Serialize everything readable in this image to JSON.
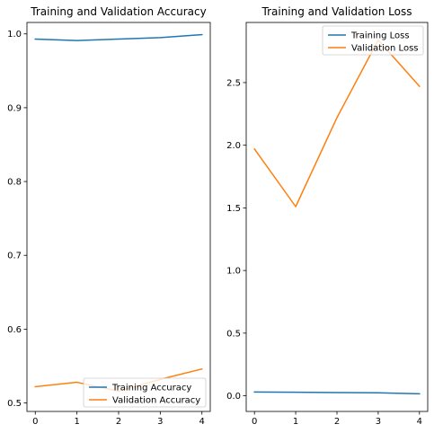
{
  "colors": {
    "training": "#1f77b4",
    "validation": "#ff7f0e",
    "axis": "#000000",
    "legend_border": "#cccccc"
  },
  "chart_data": [
    {
      "type": "line",
      "title": "Training and Validation Accuracy",
      "xlabel": "",
      "ylabel": "",
      "x": [
        0,
        1,
        2,
        3,
        4
      ],
      "xticks": [
        "0",
        "1",
        "2",
        "3",
        "4"
      ],
      "yticks": [
        "0.5",
        "0.6",
        "0.7",
        "0.8",
        "0.9",
        "1.0"
      ],
      "xlim": [
        -0.2,
        4.2
      ],
      "ylim": [
        0.4885,
        1.0155
      ],
      "grid": false,
      "legend": "lower-right",
      "series": [
        {
          "name": "Training Accuracy",
          "values": [
            0.993,
            0.991,
            0.993,
            0.995,
            0.999
          ]
        },
        {
          "name": "Validation Accuracy",
          "values": [
            0.522,
            0.528,
            0.516,
            0.532,
            0.546
          ]
        }
      ]
    },
    {
      "type": "line",
      "title": "Training and Validation Loss",
      "xlabel": "",
      "ylabel": "",
      "x": [
        0,
        1,
        2,
        3,
        4
      ],
      "xticks": [
        "0",
        "1",
        "2",
        "3",
        "4"
      ],
      "yticks": [
        "0.0",
        "0.5",
        "1.0",
        "1.5",
        "2.0",
        "2.5"
      ],
      "xlim": [
        -0.2,
        4.2
      ],
      "ylim": [
        -0.125,
        2.98
      ],
      "grid": false,
      "legend": "upper-right",
      "series": [
        {
          "name": "Training Loss",
          "values": [
            0.03,
            0.028,
            0.026,
            0.024,
            0.016
          ]
        },
        {
          "name": "Validation Loss",
          "values": [
            1.97,
            1.51,
            2.22,
            2.84,
            2.47
          ]
        }
      ]
    }
  ]
}
